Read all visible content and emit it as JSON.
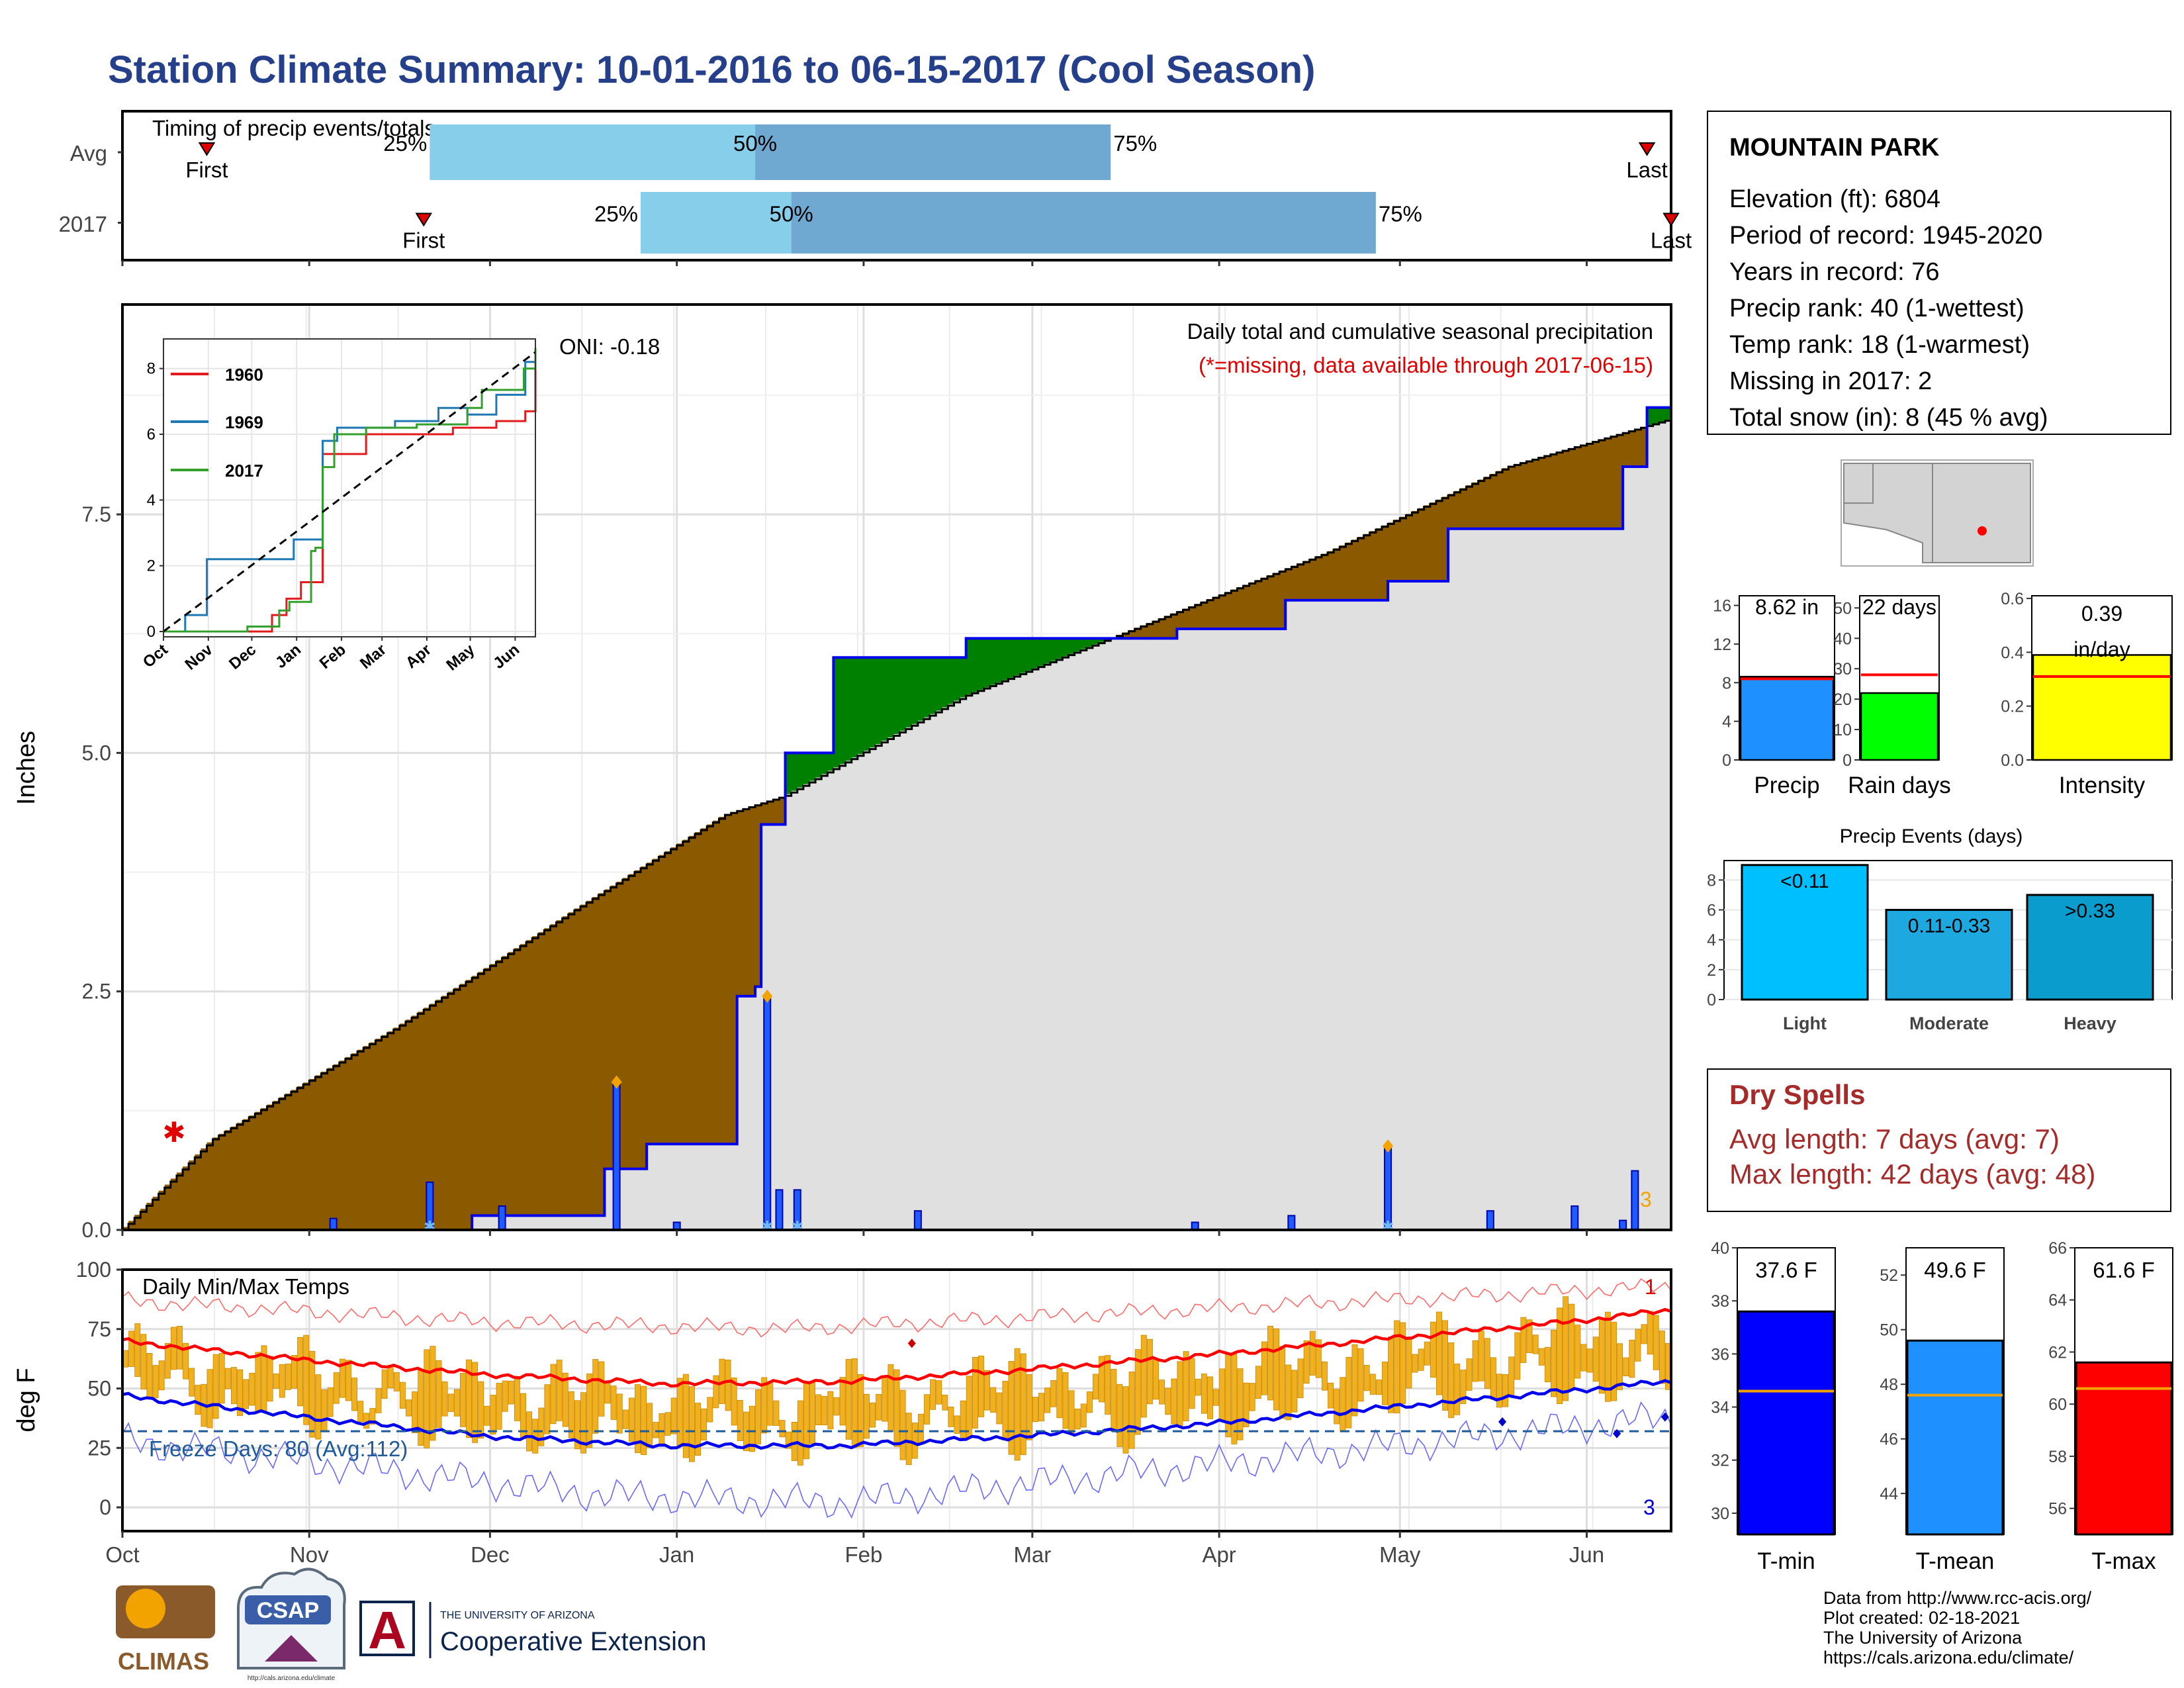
{
  "title": "Station Climate Summary: 10-01-2016 to 06-15-2017 (Cool Season)",
  "timing": {
    "title": "Timing of precip events/totals",
    "rows": [
      {
        "label": "Avg",
        "first": "First",
        "last": "Last",
        "p25": "25%",
        "p50": "50%",
        "p75": "75%",
        "first_day": 14,
        "last_day": 253,
        "p25_day": 51,
        "p50_day": 105,
        "p75_day": 164
      },
      {
        "label": "2017",
        "first": "First",
        "last": "Last",
        "p25": "25%",
        "p50": "50%",
        "p75": "75%",
        "first_day": 50,
        "last_day": 257,
        "p25_day": 86,
        "p50_day": 111,
        "p75_day": 208
      }
    ],
    "colors": {
      "early": "#87ceeb",
      "late": "#6fa8d0",
      "marker": "#e00000"
    }
  },
  "station": {
    "name": "MOUNTAIN PARK",
    "lines": [
      "Elevation (ft): 6804",
      "Period of record: 1945-2020",
      "Years in record: 76",
      "Precip rank: 40 (1-wettest)",
      "Temp rank: 18 (1-warmest)",
      "Missing in 2017: 2",
      "Total snow (in): 8 (45 % avg)"
    ]
  },
  "precip_panel": {
    "ylabel": "Inches",
    "caption": "Daily total and cumulative seasonal precipitation",
    "missing_note": "(*=missing, data available through 2017-06-15)",
    "oni": "ONI: -0.18",
    "count_label": "3",
    "colors": {
      "above": "#008000",
      "below": "#8b5a00",
      "normal": "#e0e0e0",
      "observed": "#0000ee"
    }
  },
  "temp_panel": {
    "ylabel": "deg F",
    "caption": "Daily Min/Max Temps",
    "freeze": "Freeze Days: 80 (Avg:112)",
    "top_count": "1",
    "bottom_count": "3"
  },
  "inset": {
    "series": [
      {
        "name": "1960",
        "color": "#e31a1c"
      },
      {
        "name": "1969",
        "color": "#1f78b4"
      },
      {
        "name": "2017",
        "color": "#33a02c"
      }
    ]
  },
  "mini_bars": [
    {
      "label": "Precip",
      "value_label": "8.62 in",
      "value": 8.62,
      "avg": 8.4,
      "ylim": [
        0,
        17
      ],
      "ticks": [
        0,
        4,
        8,
        12,
        16
      ],
      "color": "#1e90ff"
    },
    {
      "label": "Rain days",
      "value_label": "22 days",
      "value": 22,
      "avg": 28,
      "ylim": [
        0,
        54
      ],
      "ticks": [
        0,
        10,
        20,
        30,
        40,
        50
      ],
      "color": "#00ff00"
    },
    {
      "label": "Intensity",
      "value_label": "0.39 in/day",
      "value": 0.39,
      "avg": 0.31,
      "ylim": [
        0,
        0.61
      ],
      "ticks": [
        "0.0",
        "0.2",
        "0.4",
        "0.6"
      ],
      "color": "#ffff00"
    }
  ],
  "events": {
    "title": "Precip Events (days)",
    "bars": [
      {
        "label": "Light",
        "value_label": "<0.11",
        "value": 9,
        "color": "#00bfff"
      },
      {
        "label": "Moderate",
        "value_label": "0.11-0.33",
        "value": 6,
        "color": "#1ea8e0"
      },
      {
        "label": "Heavy",
        "value_label": ">0.33",
        "value": 7,
        "color": "#0a9ccc"
      }
    ],
    "ticks": [
      0,
      2,
      4,
      6,
      8
    ]
  },
  "dry_spells": {
    "title": "Dry Spells",
    "avg": "Avg length: 7 days (avg: 7)",
    "max": "Max length: 42 days (avg: 48)"
  },
  "temp_bars": [
    {
      "label": "T-min",
      "value_label": "37.6 F",
      "value": 37.6,
      "avg": 34.6,
      "ylim": [
        29.2,
        40
      ],
      "ticks": [
        30,
        32,
        34,
        36,
        38,
        40
      ],
      "color": "#0000ff"
    },
    {
      "label": "T-mean",
      "value_label": "49.6 F",
      "value": 49.6,
      "avg": 47.6,
      "ylim": [
        42.5,
        53
      ],
      "ticks": [
        44,
        46,
        48,
        50,
        52
      ],
      "color": "#1e90ff"
    },
    {
      "label": "T-max",
      "value_label": "61.6 F",
      "value": 61.6,
      "avg": 60.6,
      "ylim": [
        55,
        66
      ],
      "ticks": [
        56,
        58,
        60,
        62,
        64,
        66
      ],
      "color": "#ff0000"
    }
  ],
  "footer": {
    "lines": [
      "Data from http://www.rcc-acis.org/",
      "Plot created: 02-18-2021",
      "The University of Arizona",
      "https://cals.arizona.edu/climate/"
    ],
    "logos": {
      "climas": "CLIMAS",
      "csap": "CSAP",
      "csap_url": "http://cals.arizona.edu/climate",
      "ua_letter": "A",
      "ua_top": "THE UNIVERSITY OF ARIZONA",
      "ua_name": "Cooperative Extension"
    }
  },
  "chart_data": [
    {
      "type": "area",
      "title": "Daily total and cumulative seasonal precipitation",
      "xlabel": "",
      "ylabel": "Inches",
      "months": [
        "Oct",
        "Nov",
        "Dec",
        "Jan",
        "Feb",
        "Mar",
        "Apr",
        "May",
        "Jun"
      ],
      "ylim": [
        0,
        9.7
      ],
      "yticks": [
        "0.0",
        "2.5",
        "5.0",
        "7.5"
      ],
      "normal_cumulative": {
        "day": [
          0,
          15,
          45,
          75,
          100,
          110,
          140,
          170,
          200,
          230,
          257
        ],
        "in": [
          0,
          0.95,
          2.1,
          3.35,
          4.35,
          4.55,
          5.6,
          6.35,
          7.1,
          8.0,
          8.5
        ]
      },
      "observed_cumulative": {
        "day": [
          0,
          35,
          58,
          80,
          87,
          102,
          105,
          106,
          110,
          118,
          140,
          175,
          193,
          210,
          220,
          249,
          253,
          257
        ],
        "in": [
          0,
          0,
          0.15,
          0.64,
          0.9,
          2.45,
          2.55,
          4.25,
          5.0,
          6.0,
          6.2,
          6.3,
          6.6,
          6.8,
          7.35,
          8.0,
          8.62,
          8.62
        ]
      },
      "daily": {
        "day": [
          35,
          51,
          63,
          82,
          92,
          107,
          109,
          112,
          132,
          178,
          194,
          210,
          227,
          241,
          249,
          251
        ],
        "in": [
          0.12,
          0.5,
          0.25,
          1.55,
          0.08,
          2.45,
          0.42,
          0.42,
          0.2,
          0.08,
          0.15,
          0.88,
          0.2,
          0.25,
          0.1,
          0.62
        ]
      },
      "missing_day": 9,
      "missing_value": 1.0
    },
    {
      "type": "line",
      "title": "",
      "xlabel": "",
      "ylabel": "",
      "months": [
        "Oct",
        "Nov",
        "Dec",
        "Jan",
        "Feb",
        "Mar",
        "Apr",
        "May",
        "Jun"
      ],
      "ylim": [
        0,
        9
      ],
      "yticks": [
        0,
        2,
        4,
        6,
        8
      ],
      "series": [
        {
          "name": "1960",
          "x": [
            0,
            60,
            75,
            85,
            95,
            110,
            140,
            200,
            230,
            250,
            257
          ],
          "y": [
            0,
            0,
            0.5,
            1.0,
            1.5,
            5.4,
            6.0,
            6.2,
            6.4,
            6.7,
            8.1
          ]
        },
        {
          "name": "1969",
          "x": [
            0,
            15,
            30,
            45,
            90,
            110,
            120,
            160,
            180,
            190,
            210,
            230,
            240,
            250,
            257
          ],
          "y": [
            0,
            0.5,
            2.2,
            2.2,
            2.8,
            5.8,
            6.2,
            6.4,
            6.4,
            6.8,
            6.6,
            7.2,
            7.2,
            8.2,
            8.5
          ]
        },
        {
          "name": "2017",
          "x": [
            0,
            35,
            58,
            80,
            87,
            102,
            105,
            110,
            118,
            140,
            175,
            210,
            220,
            249,
            257
          ],
          "y": [
            0,
            0,
            0.15,
            0.64,
            0.9,
            2.45,
            2.55,
            5.0,
            6.0,
            6.2,
            6.3,
            6.8,
            7.35,
            8.0,
            8.62
          ]
        },
        {
          "name": "average",
          "x": [
            0,
            257
          ],
          "y": [
            0,
            8.5
          ]
        }
      ]
    },
    {
      "type": "bar",
      "title": "Daily Min/Max Temps",
      "xlabel": "",
      "ylabel": "deg F",
      "months": [
        "Oct",
        "Nov",
        "Dec",
        "Jan",
        "Feb",
        "Mar",
        "Apr",
        "May",
        "Jun"
      ],
      "ylim": [
        -10,
        100
      ],
      "yticks": [
        0,
        25,
        50,
        75,
        100
      ],
      "freeze_line": 32,
      "avg_max": {
        "day": [
          0,
          30,
          60,
          90,
          120,
          150,
          180,
          210,
          240,
          257
        ],
        "f": [
          70,
          62,
          56,
          52,
          53,
          58,
          64,
          71,
          78,
          83
        ]
      },
      "avg_min": {
        "day": [
          0,
          30,
          60,
          90,
          120,
          150,
          180,
          210,
          240,
          257
        ],
        "f": [
          47,
          38,
          30,
          26,
          26,
          30,
          35,
          42,
          49,
          53
        ]
      },
      "record_high": {
        "day": [
          0,
          60,
          110,
          257
        ],
        "f": [
          87,
          78,
          75,
          93
        ]
      },
      "record_low": {
        "day": [
          0,
          80,
          120,
          257
        ],
        "f": [
          28,
          5,
          2,
          38
        ]
      }
    },
    {
      "type": "bar",
      "categories": [
        "Precip",
        "Rain days",
        "Intensity"
      ],
      "values": [
        8.62,
        22,
        0.39
      ],
      "averages": [
        8.4,
        28,
        0.31
      ]
    },
    {
      "type": "bar",
      "title": "Precip Events (days)",
      "categories": [
        "Light",
        "Moderate",
        "Heavy"
      ],
      "values": [
        9,
        6,
        7
      ]
    },
    {
      "type": "bar",
      "categories": [
        "T-min",
        "T-mean",
        "T-max"
      ],
      "values": [
        37.6,
        49.6,
        61.6
      ],
      "averages": [
        34.6,
        47.6,
        60.6
      ]
    }
  ]
}
